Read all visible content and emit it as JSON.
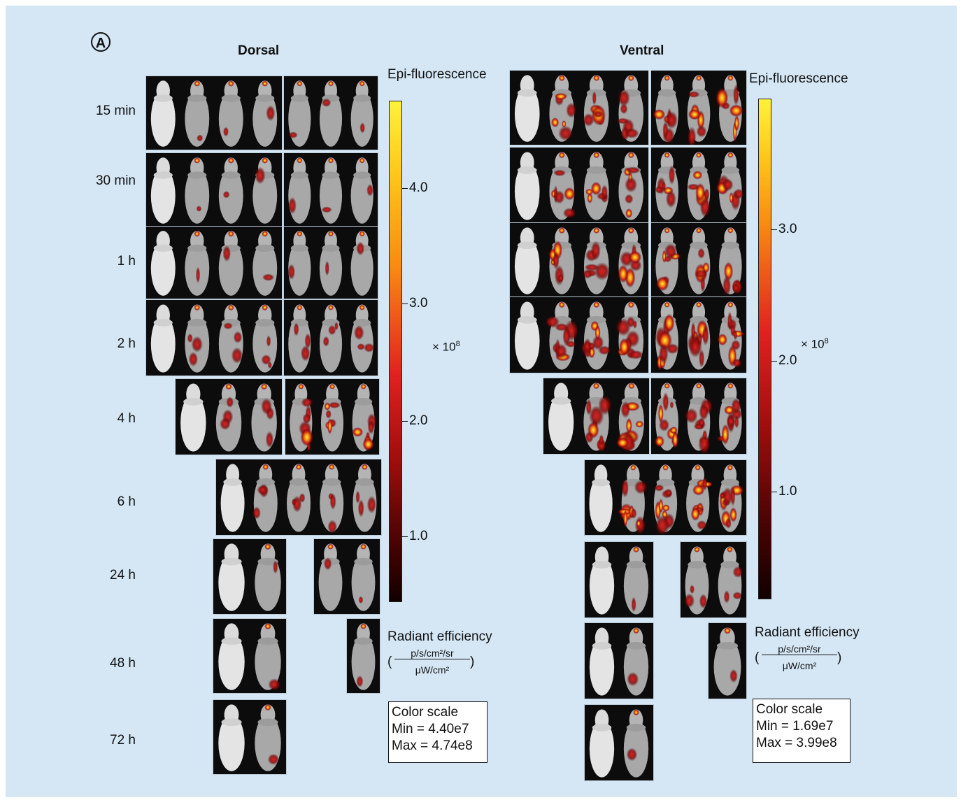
{
  "panel_label": "A",
  "headings": {
    "dorsal": "Dorsal",
    "ventral": "Ventral"
  },
  "time_points": [
    "15 min",
    "30 min",
    "1 h",
    "2 h",
    "4 h",
    "6 h",
    "24 h",
    "48 h",
    "72 h"
  ],
  "dorsal_scale": {
    "title": "Epi-fluorescence",
    "ticks": [
      "4.0",
      "3.0",
      "2.0",
      "1.0"
    ],
    "exponent_label": "× 10",
    "exponent_power": "8",
    "unit_title": "Radiant efficiency",
    "unit_numerator": "p/s/cm²/sr",
    "unit_denominator": "μW/cm²",
    "box_title": "Color scale",
    "min_label": "Min = 4.40e7",
    "max_label": "Max = 4.74e8"
  },
  "ventral_scale": {
    "title": "Epi-fluorescence",
    "ticks": [
      "3.0",
      "2.0",
      "1.0"
    ],
    "exponent_label": "× 10",
    "exponent_power": "8",
    "unit_title": "Radiant efficiency",
    "unit_numerator": "p/s/cm²/sr",
    "unit_denominator": "μW/cm²",
    "box_title": "Color scale",
    "min_label": "Min = 1.69e7",
    "max_label": "Max = 3.99e8"
  },
  "colors": {
    "background": "#d5e7f5",
    "gradient_top": "#fff23a",
    "gradient_mid": "#e02020",
    "gradient_bottom": "#120000"
  }
}
